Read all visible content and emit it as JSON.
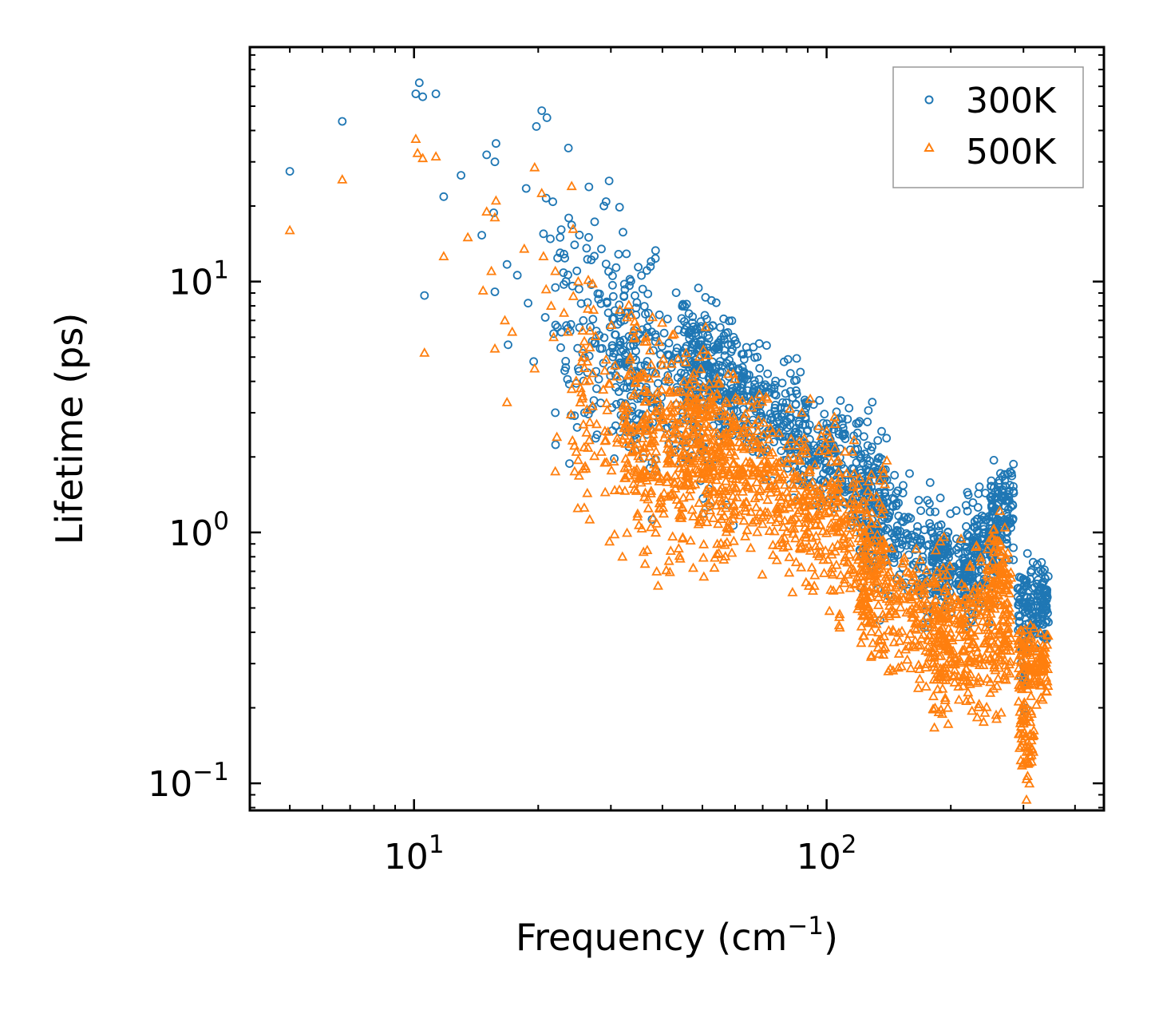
{
  "chart_data": {
    "type": "scatter",
    "title": "",
    "xlabel": "Frequency (cm",
    "xlabel_sup": "−1",
    "xlabel_tail": ")",
    "ylabel": "Lifetime (ps)",
    "xscale": "log",
    "yscale": "log",
    "xlim": [
      4.0,
      470.0
    ],
    "ylim": [
      0.078,
      86.0
    ],
    "x_ticks": [
      {
        "value": 10,
        "base": "10",
        "exp": "1"
      },
      {
        "value": 100,
        "base": "10",
        "exp": "2"
      }
    ],
    "y_ticks": [
      {
        "value": 10,
        "base": "10",
        "exp": "1"
      },
      {
        "value": 1,
        "base": "10",
        "exp": "0"
      },
      {
        "value": 0.1,
        "base": "10",
        "exp": "−1"
      }
    ],
    "legend_position": "top-right",
    "series": [
      {
        "name": "300K",
        "marker": "circle",
        "color": "#1f77b4",
        "points": [
          [
            5.0,
            27.5
          ],
          [
            6.7,
            43.5
          ],
          [
            10.1,
            56.0
          ],
          [
            10.3,
            62.0
          ],
          [
            10.5,
            54.5
          ],
          [
            11.3,
            56.0
          ],
          [
            11.8,
            21.8
          ],
          [
            10.6,
            8.8
          ],
          [
            13.0,
            26.5
          ],
          [
            14.6,
            15.3
          ],
          [
            15.0,
            32.0
          ],
          [
            15.8,
            35.5
          ],
          [
            15.7,
            30.0
          ],
          [
            15.6,
            18.8
          ],
          [
            15.7,
            9.1
          ],
          [
            16.8,
            11.7
          ],
          [
            16.9,
            5.6
          ],
          [
            17.8,
            10.6
          ],
          [
            18.9,
            8.2
          ],
          [
            18.7,
            23.5
          ],
          [
            19.8,
            41.5
          ],
          [
            20.4,
            48.0
          ],
          [
            21.0,
            45.0
          ],
          [
            19.5,
            4.8
          ],
          [
            20.6,
            15.5
          ],
          [
            20.9,
            21.5
          ],
          [
            21.7,
            20.8
          ],
          [
            21.4,
            14.8
          ],
          [
            20.8,
            7.2
          ],
          [
            21.8,
            6.2
          ],
          [
            22.0,
            3.0
          ],
          [
            22.6,
            15.0
          ],
          [
            23.2,
            12.4
          ],
          [
            23.6,
            6.5
          ],
          [
            23.8,
            3.9
          ],
          [
            24.1,
            16.8
          ],
          [
            24.5,
            14.0
          ],
          [
            25.0,
            4.5
          ],
          [
            25.9,
            3.0
          ],
          [
            26.5,
            15.0
          ],
          [
            26.9,
            12.2
          ],
          [
            27.4,
            17.3
          ],
          [
            28.0,
            8.5
          ]
        ],
        "clusters": [
          {
            "x_range": [
              22.0,
              40.0
            ],
            "y_center": 5.5,
            "spread": 0.24,
            "slope": -0.8,
            "count": 150
          },
          {
            "x_range": [
              30.0,
              60.0
            ],
            "y_center": 4.0,
            "spread": 0.2,
            "slope": -1.0,
            "count": 260
          },
          {
            "x_range": [
              45.0,
              140.0
            ],
            "y_center": 2.7,
            "spread": 0.12,
            "slope": -1.15,
            "count": 650
          },
          {
            "x_range": [
              120.0,
              200.0
            ],
            "y_center": 0.9,
            "spread": 0.12,
            "slope": -0.8,
            "count": 260
          },
          {
            "x_range": [
              180.0,
              220.0
            ],
            "y_center": 0.72,
            "spread": 0.08,
            "slope": 0.0,
            "count": 100
          },
          {
            "x_range": [
              215.0,
              260.0
            ],
            "y_center": 0.8,
            "spread": 0.12,
            "slope": 2.0,
            "count": 170
          },
          {
            "x_range": [
              250.0,
              285.0
            ],
            "y_center": 1.2,
            "spread": 0.1,
            "slope": 0.0,
            "count": 100
          },
          {
            "x_range": [
              290.0,
              345.0
            ],
            "y_center": 0.52,
            "spread": 0.08,
            "slope": -0.4,
            "count": 160
          },
          {
            "x_range": [
              295.0,
              310.0
            ],
            "y_center": 0.3,
            "spread": 0.08,
            "slope": 0.0,
            "count": 16
          }
        ]
      },
      {
        "name": "500K",
        "marker": "triangle",
        "color": "#ff7f0e",
        "points": [
          [
            5.0,
            16.0
          ],
          [
            6.7,
            25.5
          ],
          [
            10.1,
            37.0
          ],
          [
            10.2,
            32.5
          ],
          [
            10.5,
            31.0
          ],
          [
            11.3,
            31.5
          ],
          [
            10.6,
            5.2
          ],
          [
            11.8,
            12.6
          ],
          [
            13.5,
            15.0
          ],
          [
            14.7,
            9.2
          ],
          [
            15.0,
            19.0
          ],
          [
            15.7,
            18.0
          ],
          [
            15.8,
            21.0
          ],
          [
            15.4,
            11.0
          ],
          [
            15.7,
            5.4
          ],
          [
            16.6,
            7.0
          ],
          [
            16.8,
            3.3
          ],
          [
            17.3,
            6.3
          ],
          [
            18.5,
            13.5
          ],
          [
            19.6,
            4.5
          ],
          [
            19.6,
            28.5
          ],
          [
            20.4,
            22.5
          ],
          [
            20.6,
            12.6
          ],
          [
            20.9,
            9.3
          ],
          [
            21.5,
            8.0
          ],
          [
            21.8,
            6.0
          ],
          [
            22.2,
            2.4
          ],
          [
            22.0,
            11.0
          ],
          [
            23.1,
            7.5
          ],
          [
            23.6,
            6.3
          ],
          [
            24.1,
            24.0
          ],
          [
            24.3,
            16.2
          ],
          [
            25.0,
            10.0
          ],
          [
            25.5,
            4.8
          ],
          [
            26.2,
            2.5
          ],
          [
            27.1,
            9.8
          ],
          [
            22.0,
            1.75
          ],
          [
            24.5,
            1.75
          ]
        ],
        "clusters": [
          {
            "x_range": [
              24.0,
              45.0
            ],
            "y_center": 2.6,
            "spread": 0.24,
            "slope": -0.8,
            "count": 180
          },
          {
            "x_range": [
              32.0,
              60.0
            ],
            "y_center": 2.0,
            "spread": 0.2,
            "slope": -1.0,
            "count": 280
          },
          {
            "x_range": [
              45.0,
              140.0
            ],
            "y_center": 1.5,
            "spread": 0.16,
            "slope": -1.1,
            "count": 700
          },
          {
            "x_range": [
              120.0,
              200.0
            ],
            "y_center": 0.5,
            "spread": 0.13,
            "slope": -0.5,
            "count": 250
          },
          {
            "x_range": [
              180.0,
              280.0
            ],
            "y_center": 0.38,
            "spread": 0.15,
            "slope": 0.6,
            "count": 330
          },
          {
            "x_range": [
              245.0,
              275.0
            ],
            "y_center": 0.7,
            "spread": 0.1,
            "slope": 0.0,
            "count": 70
          },
          {
            "x_range": [
              290.0,
              345.0
            ],
            "y_center": 0.31,
            "spread": 0.07,
            "slope": -0.3,
            "count": 120
          },
          {
            "x_range": [
              292.0,
              318.0
            ],
            "y_center": 0.15,
            "spread": 0.1,
            "slope": 0.0,
            "count": 60
          }
        ]
      }
    ]
  }
}
